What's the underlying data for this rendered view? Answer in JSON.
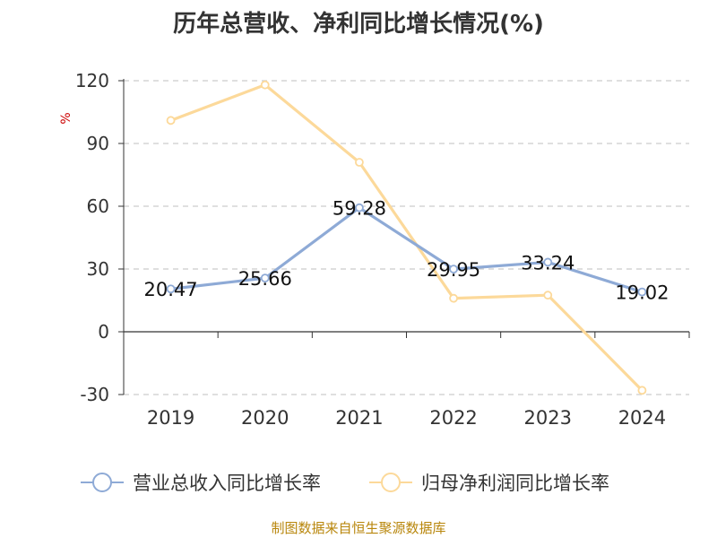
{
  "chart_data": {
    "type": "line",
    "title": "历年总营收、净利同比增长情况(%)",
    "ylabel": "%",
    "xlabel": "",
    "categories": [
      "2019",
      "2020",
      "2021",
      "2022",
      "2023",
      "2024"
    ],
    "ylim": [
      -30,
      120
    ],
    "yticks": [
      -30,
      0,
      30,
      60,
      90,
      120
    ],
    "grid": true,
    "legend_position": "bottom",
    "series": [
      {
        "name": "营业总收入同比增长率",
        "values": [
          20.47,
          25.66,
          59.28,
          29.95,
          33.24,
          19.02
        ],
        "labels": [
          "20.47",
          "25.66",
          "59.28",
          "29.95",
          "33.24",
          "19.02"
        ],
        "color": "#8eaad6"
      },
      {
        "name": "归母净利润同比增长率",
        "values": [
          101,
          118,
          81,
          16,
          17.5,
          -28
        ],
        "color": "#fcd99a"
      }
    ]
  },
  "source": "制图数据来自恒生聚源数据库"
}
